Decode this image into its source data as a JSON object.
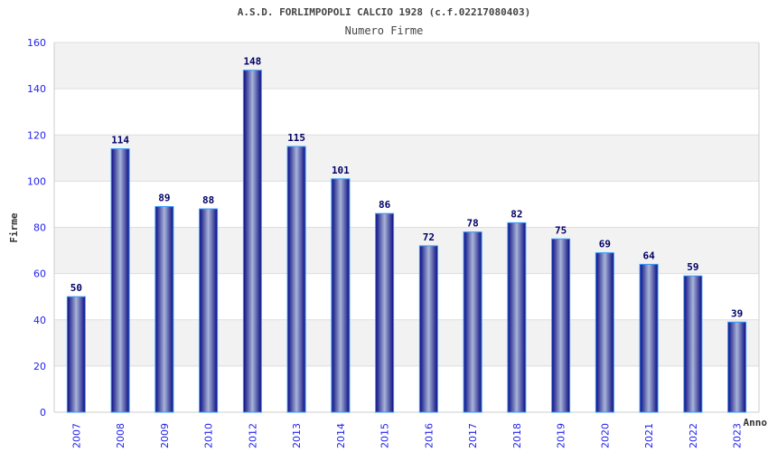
{
  "chart_data": {
    "type": "bar",
    "title": "A.S.D. FORLIMPOPOLI CALCIO 1928 (c.f.02217080403)",
    "subtitle": "Numero Firme",
    "xlabel": "Anno",
    "ylabel": "Firme",
    "ylim": [
      0,
      160
    ],
    "yticks": [
      "0",
      "20",
      "40",
      "60",
      "80",
      "100",
      "120",
      "140",
      "160"
    ],
    "categories": [
      "2007",
      "2008",
      "2009",
      "2010",
      "2012",
      "2013",
      "2014",
      "2015",
      "2016",
      "2017",
      "2018",
      "2019",
      "2020",
      "2021",
      "2022",
      "2023"
    ],
    "values": [
      50,
      114,
      89,
      88,
      148,
      115,
      101,
      86,
      72,
      78,
      82,
      75,
      69,
      64,
      59,
      39
    ],
    "grid": true,
    "colors": {
      "bar_dark": "#0a0a80",
      "bar_light": "#a8b4d8",
      "bar_border": "#3399ff",
      "band": "#f2f2f2",
      "grid": "#dddddd",
      "tick": "#2222ee",
      "label": "#000066"
    }
  }
}
